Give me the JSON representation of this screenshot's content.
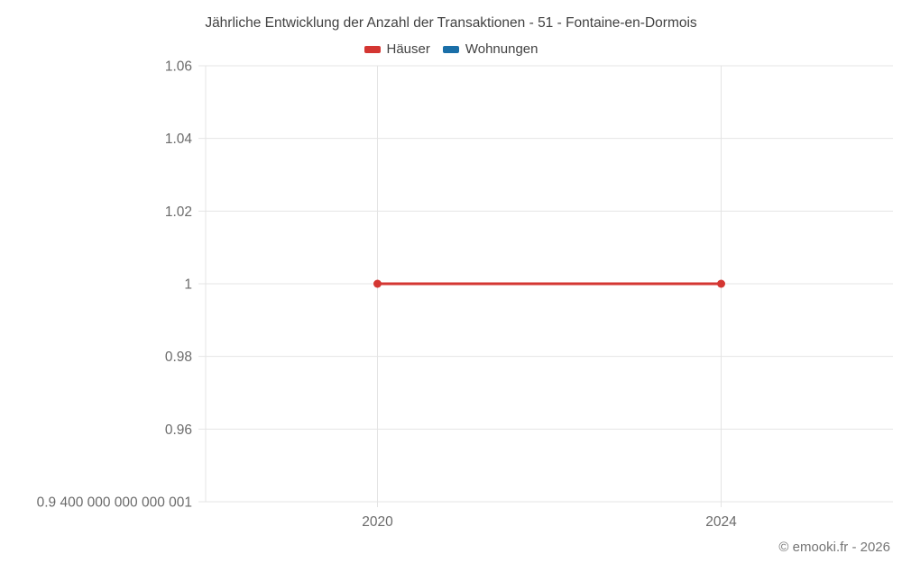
{
  "credit": "© emooki.fr - 2026",
  "chart_data": {
    "type": "line",
    "title": "Jährliche Entwicklung der Anzahl der Transaktionen - 51 - Fontaine-en-Dormois",
    "legend_position": "top",
    "grid": true,
    "series": [
      {
        "name": "Häuser",
        "color": "#d43632",
        "points": [
          {
            "x": 2020,
            "y": 1
          },
          {
            "x": 2024,
            "y": 1
          }
        ]
      },
      {
        "name": "Wohnungen",
        "color": "#1a6fa8",
        "points": []
      }
    ],
    "x_axis": {
      "range": [
        2018,
        2026
      ],
      "ticks": [
        {
          "value": 2020,
          "label": "2020"
        },
        {
          "value": 2024,
          "label": "2024"
        }
      ]
    },
    "y_axis": {
      "range": [
        0.9400000000000001,
        1.06
      ],
      "ticks": [
        {
          "value": 1.06,
          "label": "1.06"
        },
        {
          "value": 1.04,
          "label": "1.04"
        },
        {
          "value": 1.02,
          "label": "1.02"
        },
        {
          "value": 1,
          "label": "1"
        },
        {
          "value": 0.98,
          "label": "0.98"
        },
        {
          "value": 0.96,
          "label": "0.96"
        },
        {
          "value": 0.9400000000000001,
          "label": "0.9 400 000 000 000 001"
        }
      ]
    },
    "colors": {
      "gridline": "#e4e4e4",
      "axis_text": "#6b6b6b",
      "title_text": "#424242"
    }
  }
}
